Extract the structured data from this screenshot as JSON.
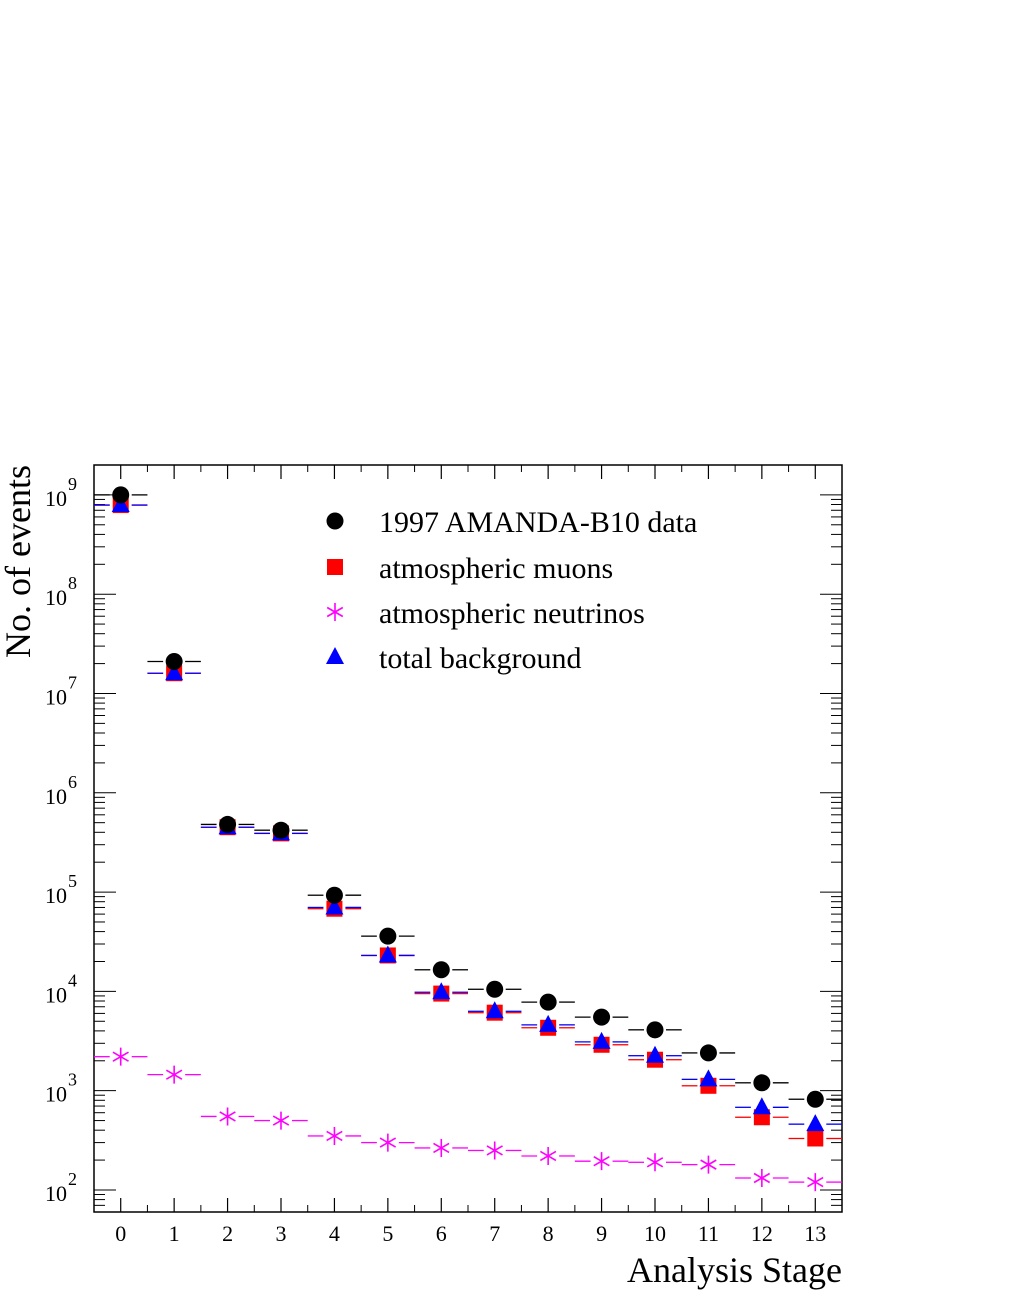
{
  "chart_data": {
    "type": "scatter",
    "xlabel": "Analysis Stage",
    "ylabel": "No. of events",
    "yscale": "log",
    "ylim": [
      60,
      2000000000
    ],
    "xlim": [
      -0.5,
      13.5
    ],
    "categories": [
      "0",
      "1",
      "2",
      "3",
      "4",
      "5",
      "6",
      "7",
      "8",
      "9",
      "10",
      "11",
      "12",
      "13"
    ],
    "ytick_labels": [
      {
        "exp": 2,
        "base": "10",
        "sup": "2"
      },
      {
        "exp": 3,
        "base": "10",
        "sup": "3"
      },
      {
        "exp": 4,
        "base": "10",
        "sup": "4"
      },
      {
        "exp": 5,
        "base": "10",
        "sup": "5"
      },
      {
        "exp": 6,
        "base": "10",
        "sup": "6"
      },
      {
        "exp": 7,
        "base": "10",
        "sup": "7"
      },
      {
        "exp": 8,
        "base": "10",
        "sup": "8"
      },
      {
        "exp": 9,
        "base": "10",
        "sup": "9"
      }
    ],
    "legend_position": "top-right",
    "series": [
      {
        "name": "1997 AMANDA-B10 data",
        "marker": "circle",
        "color": "#000000",
        "values": [
          1000000000,
          21000000,
          480000,
          420000,
          93000,
          36000,
          16500,
          10500,
          7800,
          5500,
          4100,
          2400,
          1200,
          820
        ]
      },
      {
        "name": "atmospheric muons",
        "marker": "square",
        "color": "#ff0000",
        "values": [
          790000000,
          16000000,
          450000,
          390000,
          68000,
          23000,
          9500,
          6100,
          4300,
          2900,
          2050,
          1120,
          540,
          330
        ]
      },
      {
        "name": "atmospheric neutrinos",
        "marker": "asterisk",
        "color": "#ff00ff",
        "values": [
          2200,
          1450,
          550,
          500,
          350,
          300,
          265,
          250,
          220,
          195,
          190,
          180,
          132,
          120
        ]
      },
      {
        "name": "total background",
        "marker": "triangle",
        "color": "#0000ff",
        "values": [
          790000000,
          16000000,
          450000,
          390000,
          70000,
          23000,
          9800,
          6300,
          4600,
          3100,
          2250,
          1300,
          680,
          460
        ]
      }
    ]
  }
}
